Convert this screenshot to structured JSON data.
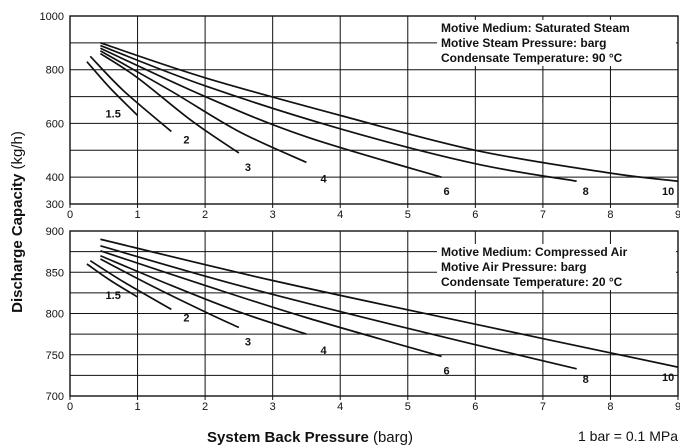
{
  "chart_data": [
    {
      "type": "line",
      "info": [
        "Motive Medium: Saturated Steam",
        "Motive Steam Pressure: barg",
        "Condensate Temperature: 90 °C"
      ],
      "xlim": [
        0,
        9
      ],
      "ylim": [
        300,
        1000
      ],
      "x_ticks": [
        0,
        1,
        2,
        3,
        4,
        5,
        6,
        7,
        8,
        9
      ],
      "y_ticks": [
        300,
        400,
        600,
        800,
        1000
      ],
      "y_grid": [
        400,
        500,
        600,
        700,
        800,
        900,
        1000
      ],
      "grid": true,
      "series": [
        {
          "name": "1.5",
          "x": [
            0.25,
            0.6,
            1.0
          ],
          "y": [
            830,
            730,
            630
          ]
        },
        {
          "name": "2",
          "x": [
            0.3,
            0.8,
            1.5
          ],
          "y": [
            850,
            720,
            570
          ]
        },
        {
          "name": "3",
          "x": [
            0.45,
            1.0,
            1.8,
            2.5
          ],
          "y": [
            860,
            770,
            610,
            490
          ]
        },
        {
          "name": "4",
          "x": [
            0.45,
            1.5,
            2.5,
            3.5
          ],
          "y": [
            870,
            720,
            570,
            455
          ]
        },
        {
          "name": "6",
          "x": [
            0.45,
            2.0,
            3.5,
            5.5
          ],
          "y": [
            880,
            700,
            550,
            400
          ]
        },
        {
          "name": "8",
          "x": [
            0.45,
            2.0,
            4.0,
            6.0,
            7.5
          ],
          "y": [
            890,
            740,
            580,
            450,
            385
          ]
        },
        {
          "name": "10",
          "x": [
            0.45,
            2.0,
            4.0,
            6.0,
            8.0,
            9.0
          ],
          "y": [
            900,
            770,
            630,
            500,
            415,
            385
          ]
        }
      ]
    },
    {
      "type": "line",
      "info": [
        "Motive Medium: Compressed Air",
        "Motive Air Pressure: barg",
        "Condensate Temperature: 20 °C"
      ],
      "xlim": [
        0,
        9
      ],
      "ylim": [
        700,
        900
      ],
      "x_ticks": [
        0,
        1,
        2,
        3,
        4,
        5,
        6,
        7,
        8,
        9
      ],
      "y_ticks": [
        700,
        750,
        800,
        850,
        900
      ],
      "y_grid": [
        725,
        750,
        775,
        800,
        825,
        850,
        875,
        900
      ],
      "grid": true,
      "series": [
        {
          "name": "1.5",
          "x": [
            0.25,
            0.6,
            1.0
          ],
          "y": [
            860,
            840,
            820
          ]
        },
        {
          "name": "2",
          "x": [
            0.3,
            0.8,
            1.5
          ],
          "y": [
            864,
            838,
            805
          ]
        },
        {
          "name": "3",
          "x": [
            0.45,
            1.2,
            2.0,
            2.5
          ],
          "y": [
            866,
            834,
            802,
            783
          ]
        },
        {
          "name": "4",
          "x": [
            0.45,
            1.5,
            2.5,
            3.5
          ],
          "y": [
            870,
            834,
            802,
            775
          ]
        },
        {
          "name": "6",
          "x": [
            0.45,
            2.0,
            3.5,
            5.5
          ],
          "y": [
            876,
            834,
            795,
            748
          ]
        },
        {
          "name": "8",
          "x": [
            0.45,
            2.5,
            5.0,
            7.5
          ],
          "y": [
            882,
            834,
            782,
            733
          ]
        },
        {
          "name": "10",
          "x": [
            0.45,
            3.0,
            6.0,
            9.0
          ],
          "y": [
            890,
            840,
            787,
            735
          ]
        }
      ]
    }
  ],
  "ylabel": {
    "bold": "Discharge Capacity",
    "normal": " (kg/h)"
  },
  "xlabel": {
    "bold": "System Back Pressure",
    "normal": " (barg)"
  },
  "note": "1 bar = 0.1 MPa"
}
